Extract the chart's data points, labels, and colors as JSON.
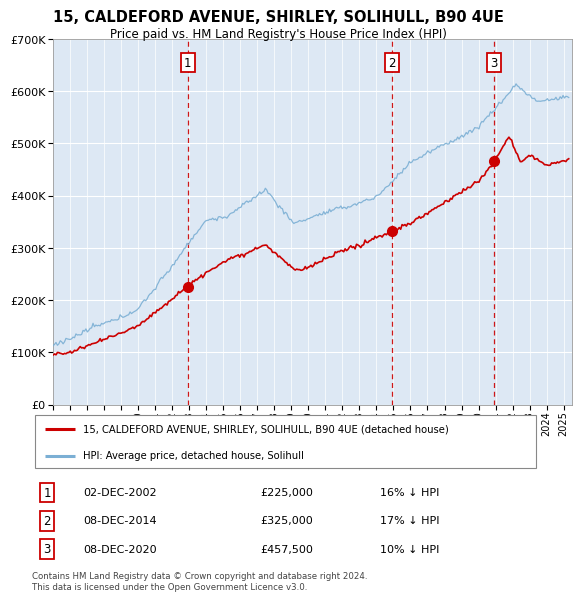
{
  "title": "15, CALDEFORD AVENUE, SHIRLEY, SOLIHULL, B90 4UE",
  "subtitle": "Price paid vs. HM Land Registry's House Price Index (HPI)",
  "legend_label_red": "15, CALDEFORD AVENUE, SHIRLEY, SOLIHULL, B90 4UE (detached house)",
  "legend_label_blue": "HPI: Average price, detached house, Solihull",
  "footnote": "Contains HM Land Registry data © Crown copyright and database right 2024.\nThis data is licensed under the Open Government Licence v3.0.",
  "transactions": [
    {
      "num": 1,
      "date": "02-DEC-2002",
      "price": 225000,
      "pct": "16%",
      "dir": "↓",
      "x_year": 2002.92
    },
    {
      "num": 2,
      "date": "08-DEC-2014",
      "price": 325000,
      "pct": "17%",
      "dir": "↓",
      "x_year": 2014.92
    },
    {
      "num": 3,
      "date": "08-DEC-2020",
      "price": 457500,
      "pct": "10%",
      "dir": "↓",
      "x_year": 2020.92
    }
  ],
  "background_color": "#dde8f4",
  "red_color": "#cc0000",
  "blue_color": "#7bafd4",
  "dashed_color": "#cc0000",
  "ylim": [
    0,
    700000
  ],
  "xlim_start": 1995.0,
  "xlim_end": 2025.5,
  "yticks": [
    0,
    100000,
    200000,
    300000,
    400000,
    500000,
    600000,
    700000
  ]
}
